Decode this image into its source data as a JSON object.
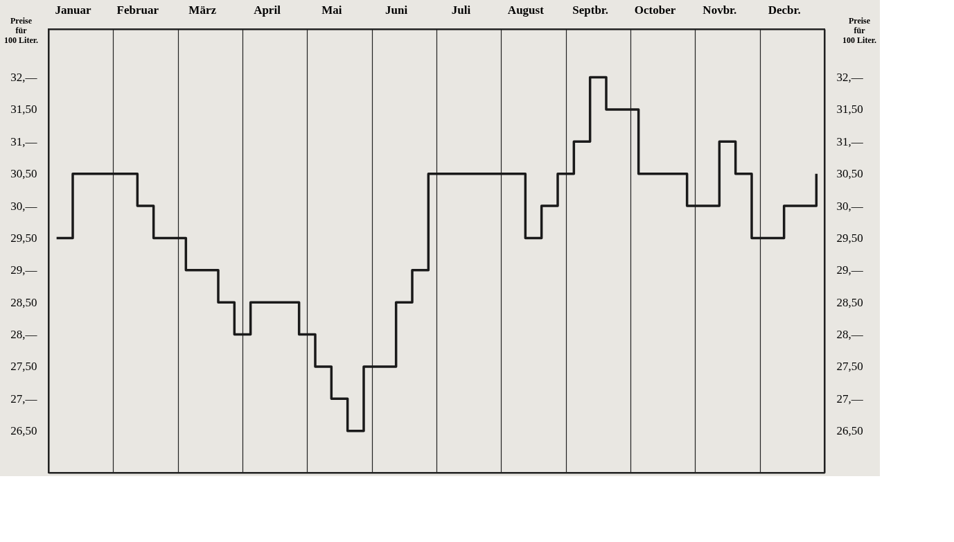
{
  "chart_data": {
    "type": "step",
    "ylabel": "Preise für 100 Liter.",
    "y2label": "Preise für 100 Liter.",
    "categories": [
      null,
      "Januar",
      null,
      null,
      null,
      "Februar",
      null,
      null,
      null,
      "März",
      null,
      null,
      null,
      "April",
      null,
      null,
      null,
      "Mai",
      null,
      null,
      null,
      "Juni",
      null,
      null,
      null,
      "Juli",
      null,
      null,
      null,
      "August",
      null,
      null,
      null,
      "Septbr.",
      null,
      null,
      null,
      "October",
      null,
      null,
      null,
      "Novbr.",
      null,
      null,
      null,
      "Decbr.",
      null,
      null
    ],
    "values": [
      29.5,
      30.5,
      30.5,
      30.5,
      30.5,
      30,
      29.5,
      29.5,
      29,
      29,
      28.5,
      28,
      28.5,
      28.5,
      28.5,
      28,
      27.5,
      27,
      26.5,
      27.5,
      27.5,
      28.5,
      29,
      30.5,
      30.5,
      30.5,
      30.5,
      30.5,
      30.5,
      29.5,
      30,
      30.5,
      31,
      32,
      31.5,
      31.5,
      30.5,
      30.5,
      30.5,
      30,
      30,
      31,
      30.5,
      29.5,
      29.5,
      30,
      30,
      30.5
    ],
    "color": "#1a1a1a",
    "ylim": [
      25.85,
      32.75
    ],
    "yticks": [
      {
        "value": 26.5,
        "label": "26,50"
      },
      {
        "value": 27,
        "label": "27,—"
      },
      {
        "value": 27.5,
        "label": "27,50"
      },
      {
        "value": 28,
        "label": "28,—"
      },
      {
        "value": 28.5,
        "label": "28,50"
      },
      {
        "value": 29,
        "label": "29,—"
      },
      {
        "value": 29.5,
        "label": "29,50"
      },
      {
        "value": 30,
        "label": "30,—"
      },
      {
        "value": 30.5,
        "label": "30,50"
      },
      {
        "value": 31,
        "label": "31,—"
      },
      {
        "value": 31.5,
        "label": "31,50"
      },
      {
        "value": 32,
        "label": "32,—"
      }
    ],
    "y2lim": [
      25.85,
      32.75
    ],
    "y2ticks": [
      {
        "value": 26.5,
        "label": "26,50"
      },
      {
        "value": 27,
        "label": "27,—"
      },
      {
        "value": 27.5,
        "label": "27,50"
      },
      {
        "value": 28,
        "label": "28,—"
      },
      {
        "value": 28.5,
        "label": "28,50"
      },
      {
        "value": 29,
        "label": "29,—"
      },
      {
        "value": 29.5,
        "label": "29,50"
      },
      {
        "value": 30,
        "label": "30,—"
      },
      {
        "value": 30.5,
        "label": "30,50"
      },
      {
        "value": 31,
        "label": "31,—"
      },
      {
        "value": 31.5,
        "label": "31,50"
      },
      {
        "value": 32,
        "label": "32,—"
      }
    ],
    "grid": "x",
    "marker": "none",
    "line_style": "solid"
  }
}
